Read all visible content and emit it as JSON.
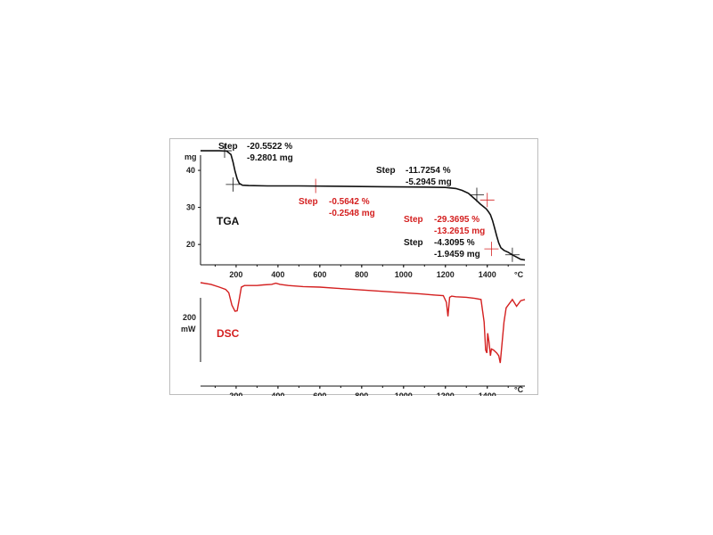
{
  "colors": {
    "black": "#111111",
    "red": "#d42020"
  },
  "chart_data": [
    {
      "type": "line",
      "title": "TGA",
      "xlabel": "°C",
      "ylabel": "mg",
      "x_ticks": [
        200,
        400,
        600,
        800,
        1000,
        1200,
        1400
      ],
      "y_ticks": [
        20,
        30,
        40
      ],
      "xlim": [
        30,
        1580
      ],
      "ylim": [
        14.5,
        47
      ],
      "series": [
        {
          "x": [
            30,
            120,
            155,
            175,
            185,
            195,
            205,
            215,
            230,
            260,
            350,
            500,
            700,
            900,
            1100,
            1200,
            1250,
            1280,
            1310,
            1330,
            1350,
            1365,
            1380,
            1395,
            1405,
            1415,
            1425,
            1435,
            1445,
            1455,
            1465,
            1480,
            1500,
            1520,
            1540,
            1560,
            1580
          ],
          "y": [
            45.3,
            45.3,
            45.2,
            44.3,
            42.3,
            39.8,
            37.7,
            36.5,
            36.0,
            35.9,
            35.8,
            35.8,
            35.7,
            35.6,
            35.5,
            35.4,
            35.1,
            34.6,
            33.8,
            32.8,
            31.8,
            31.0,
            30.3,
            29.6,
            28.9,
            28.0,
            26.5,
            24.5,
            22.3,
            20.4,
            19.1,
            18.4,
            17.9,
            17.2,
            16.6,
            16.0,
            15.8
          ]
        }
      ],
      "annotations": [
        {
          "label": "Step",
          "lines": [
            "-20.5522 %",
            "-9.2801 mg"
          ],
          "color": "black"
        },
        {
          "label": "Step",
          "lines": [
            "-0.5642 %",
            "-0.2548 mg"
          ],
          "color": "red"
        },
        {
          "label": "Step",
          "lines": [
            "-11.7254 %",
            "-5.2945 mg"
          ],
          "color": "black"
        },
        {
          "label": "Step",
          "lines": [
            "-29.3695 %",
            "-13.2615 mg"
          ],
          "color": "red"
        },
        {
          "label": "Step",
          "lines": [
            "-4.3095 %",
            "-1.9459 mg"
          ],
          "color": "black"
        }
      ]
    },
    {
      "type": "line",
      "title": "DSC",
      "xlabel": "°C",
      "scale_bar_label": "200",
      "scale_bar_unit": "mW",
      "x_ticks": [
        200,
        400,
        600,
        800,
        1000,
        1200,
        1400
      ],
      "xlim": [
        30,
        1580
      ],
      "series": [
        {
          "x": [
            30,
            80,
            120,
            150,
            165,
            180,
            195,
            205,
            215,
            225,
            240,
            270,
            300,
            330,
            370,
            390,
            410,
            450,
            520,
            600,
            680,
            760,
            840,
            920,
            1000,
            1080,
            1150,
            1190,
            1205,
            1212,
            1220,
            1230,
            1250,
            1300,
            1340,
            1370,
            1385,
            1392,
            1398,
            1402,
            1408,
            1415,
            1420,
            1430,
            1445,
            1455,
            1462,
            1470,
            1480,
            1490,
            1500,
            1520,
            1540,
            1560,
            1580
          ],
          "y": [
            0,
            -3,
            -8,
            -12,
            -18,
            -40,
            -51,
            -50,
            -30,
            -8,
            -5,
            -5,
            -5,
            -4,
            -3,
            -1,
            -3,
            -5,
            -7,
            -8,
            -10,
            -12,
            -14,
            -16,
            -18,
            -20,
            -22,
            -23,
            -35,
            -60,
            -26,
            -24,
            -25,
            -26,
            -28,
            -30,
            -70,
            -120,
            -125,
            -90,
            -105,
            -130,
            -118,
            -120,
            -125,
            -130,
            -143,
            -110,
            -70,
            -45,
            -40,
            -30,
            -42,
            -32,
            -30
          ]
        }
      ]
    }
  ]
}
